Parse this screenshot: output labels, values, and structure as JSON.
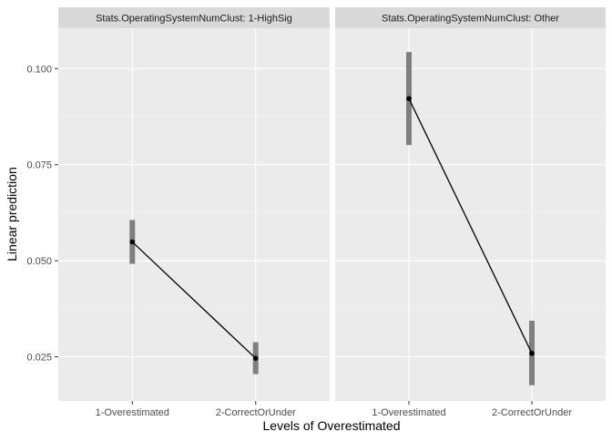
{
  "chart_data": {
    "type": "line",
    "subtype": "faceted point estimates with confidence intervals",
    "xlabel": "Levels of Overestimated",
    "ylabel": "Linear prediction",
    "categories": [
      "1-Overestimated",
      "2-CorrectOrUnder"
    ],
    "ylim": [
      0.0135,
      0.1105
    ],
    "yticks": [
      0.025,
      0.05,
      0.075,
      0.1
    ],
    "ytick_labels": [
      "0.025",
      "0.050",
      "0.075",
      "0.100"
    ],
    "grid": true,
    "theme": "ggplot2 grey",
    "facets": [
      {
        "title": "Stats.OperatingSystemNumClust: 1-HighSig",
        "points": [
          {
            "x": "1-Overestimated",
            "y": 0.0549,
            "ci_low": 0.0492,
            "ci_high": 0.0606
          },
          {
            "x": "2-CorrectOrUnder",
            "y": 0.0246,
            "ci_low": 0.0205,
            "ci_high": 0.0288
          }
        ]
      },
      {
        "title": "Stats.OperatingSystemNumClust: Other",
        "points": [
          {
            "x": "1-Overestimated",
            "y": 0.0922,
            "ci_low": 0.0801,
            "ci_high": 0.1043
          },
          {
            "x": "2-CorrectOrUnder",
            "y": 0.0259,
            "ci_low": 0.0176,
            "ci_high": 0.0344
          }
        ]
      }
    ],
    "colors": {
      "panel_background": "#ebebeb",
      "strip_background": "#d9d9d9",
      "grid_major": "#ffffff",
      "grid_minor": "#f5f5f5",
      "ci_bar": "#7f7f7f",
      "line": "#000000",
      "point": "#000000",
      "axis_text": "#4d4d4d",
      "strip_text": "#1a1a1a",
      "title_text": "#000000"
    }
  }
}
